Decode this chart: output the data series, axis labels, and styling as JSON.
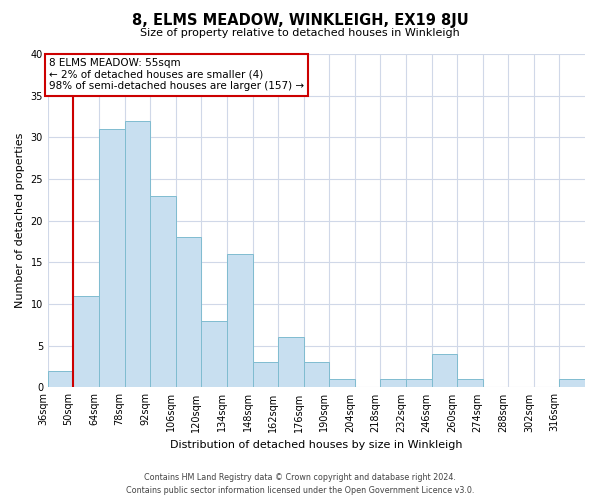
{
  "title": "8, ELMS MEADOW, WINKLEIGH, EX19 8JU",
  "subtitle": "Size of property relative to detached houses in Winkleigh",
  "xlabel": "Distribution of detached houses by size in Winkleigh",
  "ylabel": "Number of detached properties",
  "bar_labels": [
    "36sqm",
    "50sqm",
    "64sqm",
    "78sqm",
    "92sqm",
    "106sqm",
    "120sqm",
    "134sqm",
    "148sqm",
    "162sqm",
    "176sqm",
    "190sqm",
    "204sqm",
    "218sqm",
    "232sqm",
    "246sqm",
    "260sqm",
    "274sqm",
    "288sqm",
    "302sqm",
    "316sqm"
  ],
  "bar_values": [
    2,
    11,
    31,
    32,
    23,
    18,
    8,
    16,
    3,
    6,
    3,
    1,
    0,
    1,
    1,
    4,
    1,
    0,
    0,
    0,
    1
  ],
  "bar_color": "#c8dff0",
  "bar_edge_color": "#7fbcd0",
  "highlight_after_index": 1,
  "highlight_color": "#cc0000",
  "ylim": [
    0,
    40
  ],
  "yticks": [
    0,
    5,
    10,
    15,
    20,
    25,
    30,
    35,
    40
  ],
  "annotation_text": "8 ELMS MEADOW: 55sqm\n← 2% of detached houses are smaller (4)\n98% of semi-detached houses are larger (157) →",
  "annotation_box_color": "#ffffff",
  "annotation_box_edge_color": "#cc0000",
  "footer_line1": "Contains HM Land Registry data © Crown copyright and database right 2024.",
  "footer_line2": "Contains public sector information licensed under the Open Government Licence v3.0.",
  "background_color": "#ffffff",
  "grid_color": "#d0d8e8"
}
